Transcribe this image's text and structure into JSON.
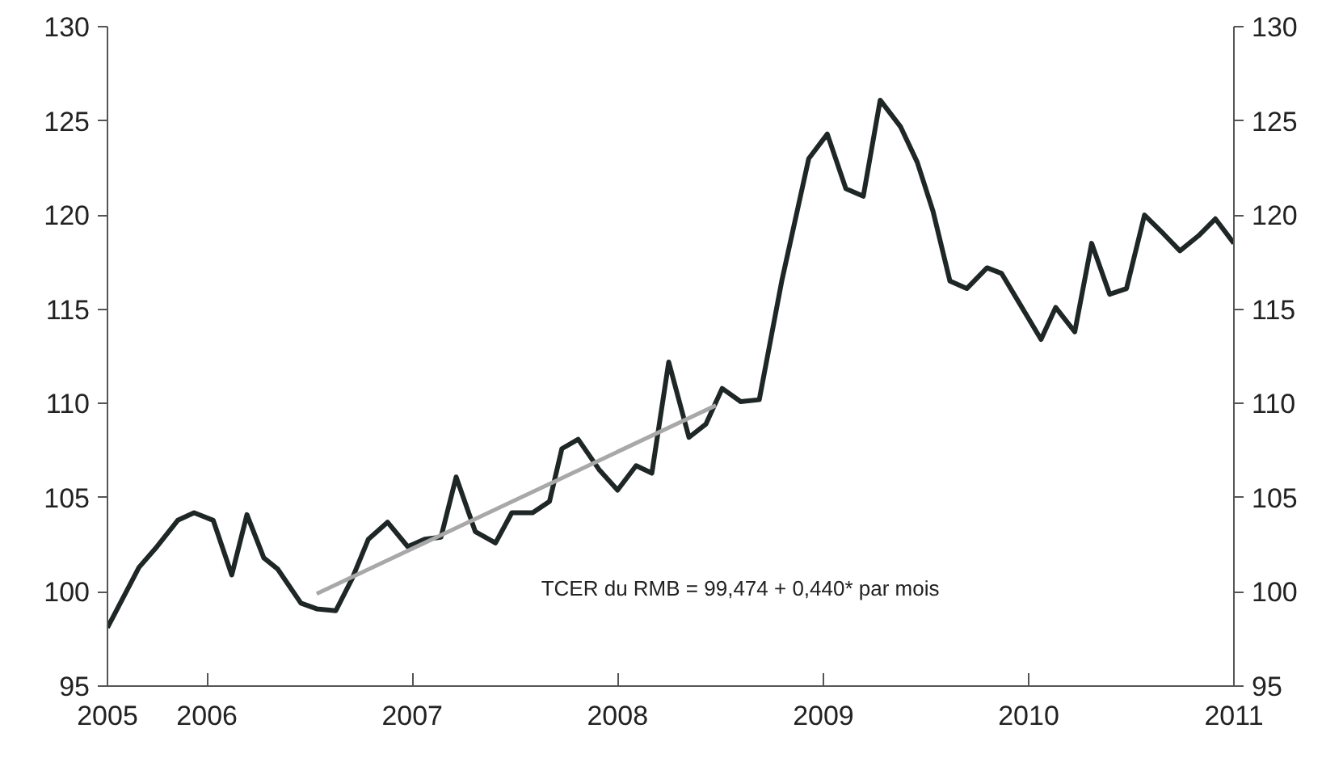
{
  "chart_data": {
    "type": "line",
    "x": [
      "2005-07-08",
      "2005-09-02",
      "2005-10-04",
      "2005-11-10",
      "2005-12-09",
      "2006-01-12",
      "2006-02-14",
      "2006-03-13",
      "2006-04-12",
      "2006-05-07",
      "2006-06-17",
      "2006-07-15",
      "2006-08-18",
      "2006-09-16",
      "2006-10-15",
      "2006-11-18",
      "2006-12-24",
      "2007-01-23",
      "2007-02-21",
      "2007-03-20",
      "2007-04-23",
      "2007-05-29",
      "2007-06-27",
      "2007-08-03",
      "2007-09-02",
      "2007-09-24",
      "2007-10-23",
      "2007-11-29",
      "2008-01-01",
      "2008-02-03",
      "2008-03-02",
      "2008-04-01",
      "2008-05-07",
      "2008-06-06",
      "2008-07-05",
      "2008-08-07",
      "2008-09-09",
      "2008-10-19",
      "2008-12-06",
      "2009-01-08",
      "2009-02-10",
      "2009-03-13",
      "2009-04-12",
      "2009-05-18",
      "2009-06-17",
      "2009-07-15",
      "2009-08-14",
      "2009-09-13",
      "2009-10-19",
      "2009-11-14",
      "2009-12-20",
      "2010-01-23",
      "2010-02-18",
      "2010-03-24",
      "2010-04-23",
      "2010-05-25",
      "2010-06-24",
      "2010-07-26",
      "2010-08-29",
      "2010-09-27",
      "2010-10-30",
      "2010-11-29",
      "2011-01-01"
    ],
    "series": [
      {
        "color": "#1f2626",
        "values": [
          98.1,
          101.3,
          102.4,
          103.8,
          104.2,
          103.8,
          100.9,
          104.1,
          101.8,
          101.2,
          99.4,
          99.1,
          99.0,
          100.7,
          102.8,
          103.7,
          102.4,
          102.8,
          102.9,
          106.1,
          103.2,
          102.6,
          104.2,
          104.2,
          104.8,
          107.6,
          108.1,
          106.5,
          105.4,
          106.7,
          106.3,
          112.2,
          108.2,
          108.9,
          110.8,
          110.1,
          110.2,
          116.5,
          123.0,
          124.3,
          121.4,
          121.0,
          126.1,
          124.7,
          122.8,
          120.2,
          116.5,
          116.1,
          117.2,
          116.9,
          115.1,
          113.4,
          115.1,
          113.8,
          118.5,
          115.8,
          116.1,
          120.0,
          119.0,
          118.1,
          118.9,
          119.8,
          118.5
        ]
      },
      {
        "type": "line",
        "color": "#a8a8a8",
        "x": [
          "2006-07-15",
          "2008-06-24"
        ],
        "values": [
          99.9,
          109.9
        ]
      }
    ],
    "xlim": [
      "2005-07-08",
      "2011-01-01"
    ],
    "xticks": [
      {
        "value": "2005-07-08",
        "label": "2005"
      },
      "2006",
      "2007",
      "2008",
      "2009",
      "2010",
      "2011"
    ],
    "ylim": [
      95,
      130
    ],
    "yticks": [
      95,
      100,
      105,
      110,
      115,
      120,
      125,
      130
    ],
    "y2lim": [
      95,
      130
    ],
    "y2ticks": [
      95,
      100,
      105,
      110,
      115,
      120,
      125,
      130
    ],
    "annotations": [
      "TCER du RMB = 99,474 + 0,440* par mois"
    ],
    "grid": false
  }
}
